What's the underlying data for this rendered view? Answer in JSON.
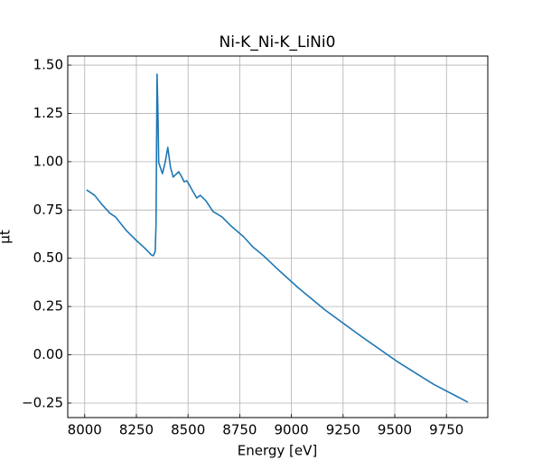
{
  "chart_data": {
    "type": "line",
    "title": "Ni-K_Ni-K_LiNi0",
    "xlabel": "Energy [eV]",
    "ylabel": "μt",
    "x": [
      8009,
      8048,
      8079,
      8122,
      8149,
      8201,
      8245,
      8288,
      8323,
      8332,
      8341,
      8345,
      8350,
      8354,
      8358,
      8367,
      8376,
      8389,
      8402,
      8415,
      8428,
      8441,
      8455,
      8468,
      8481,
      8494,
      8507,
      8524,
      8542,
      8559,
      8586,
      8621,
      8664,
      8708,
      8769,
      8813,
      8865,
      8944,
      9031,
      9163,
      9337,
      9512,
      9687,
      9853
    ],
    "series": [
      {
        "color": "#1f77b4",
        "values": [
          0.854,
          0.826,
          0.784,
          0.733,
          0.714,
          0.644,
          0.597,
          0.555,
          0.517,
          0.513,
          0.536,
          0.667,
          1.453,
          1.275,
          0.995,
          0.967,
          0.938,
          0.995,
          1.074,
          0.971,
          0.92,
          0.934,
          0.948,
          0.924,
          0.896,
          0.901,
          0.878,
          0.845,
          0.812,
          0.826,
          0.798,
          0.742,
          0.714,
          0.667,
          0.611,
          0.559,
          0.513,
          0.433,
          0.349,
          0.232,
          0.096,
          -0.035,
          -0.152,
          -0.245
        ]
      }
    ],
    "xlim": [
      7918,
      9950
    ],
    "ylim": [
      -0.325,
      1.547
    ],
    "xticks": [
      8000,
      8250,
      8500,
      8750,
      9000,
      9250,
      9500,
      9750
    ],
    "yticks": [
      {
        "value": 1.5,
        "label": "1.50"
      },
      {
        "value": 1.25,
        "label": "1.25"
      },
      {
        "value": 1.0,
        "label": "1.00"
      },
      {
        "value": 0.75,
        "label": "0.75"
      },
      {
        "value": 0.5,
        "label": "0.50"
      },
      {
        "value": 0.25,
        "label": "0.25"
      },
      {
        "value": 0.0,
        "label": "0.00"
      },
      {
        "value": -0.25,
        "label": "−0.25"
      }
    ],
    "grid": true
  }
}
